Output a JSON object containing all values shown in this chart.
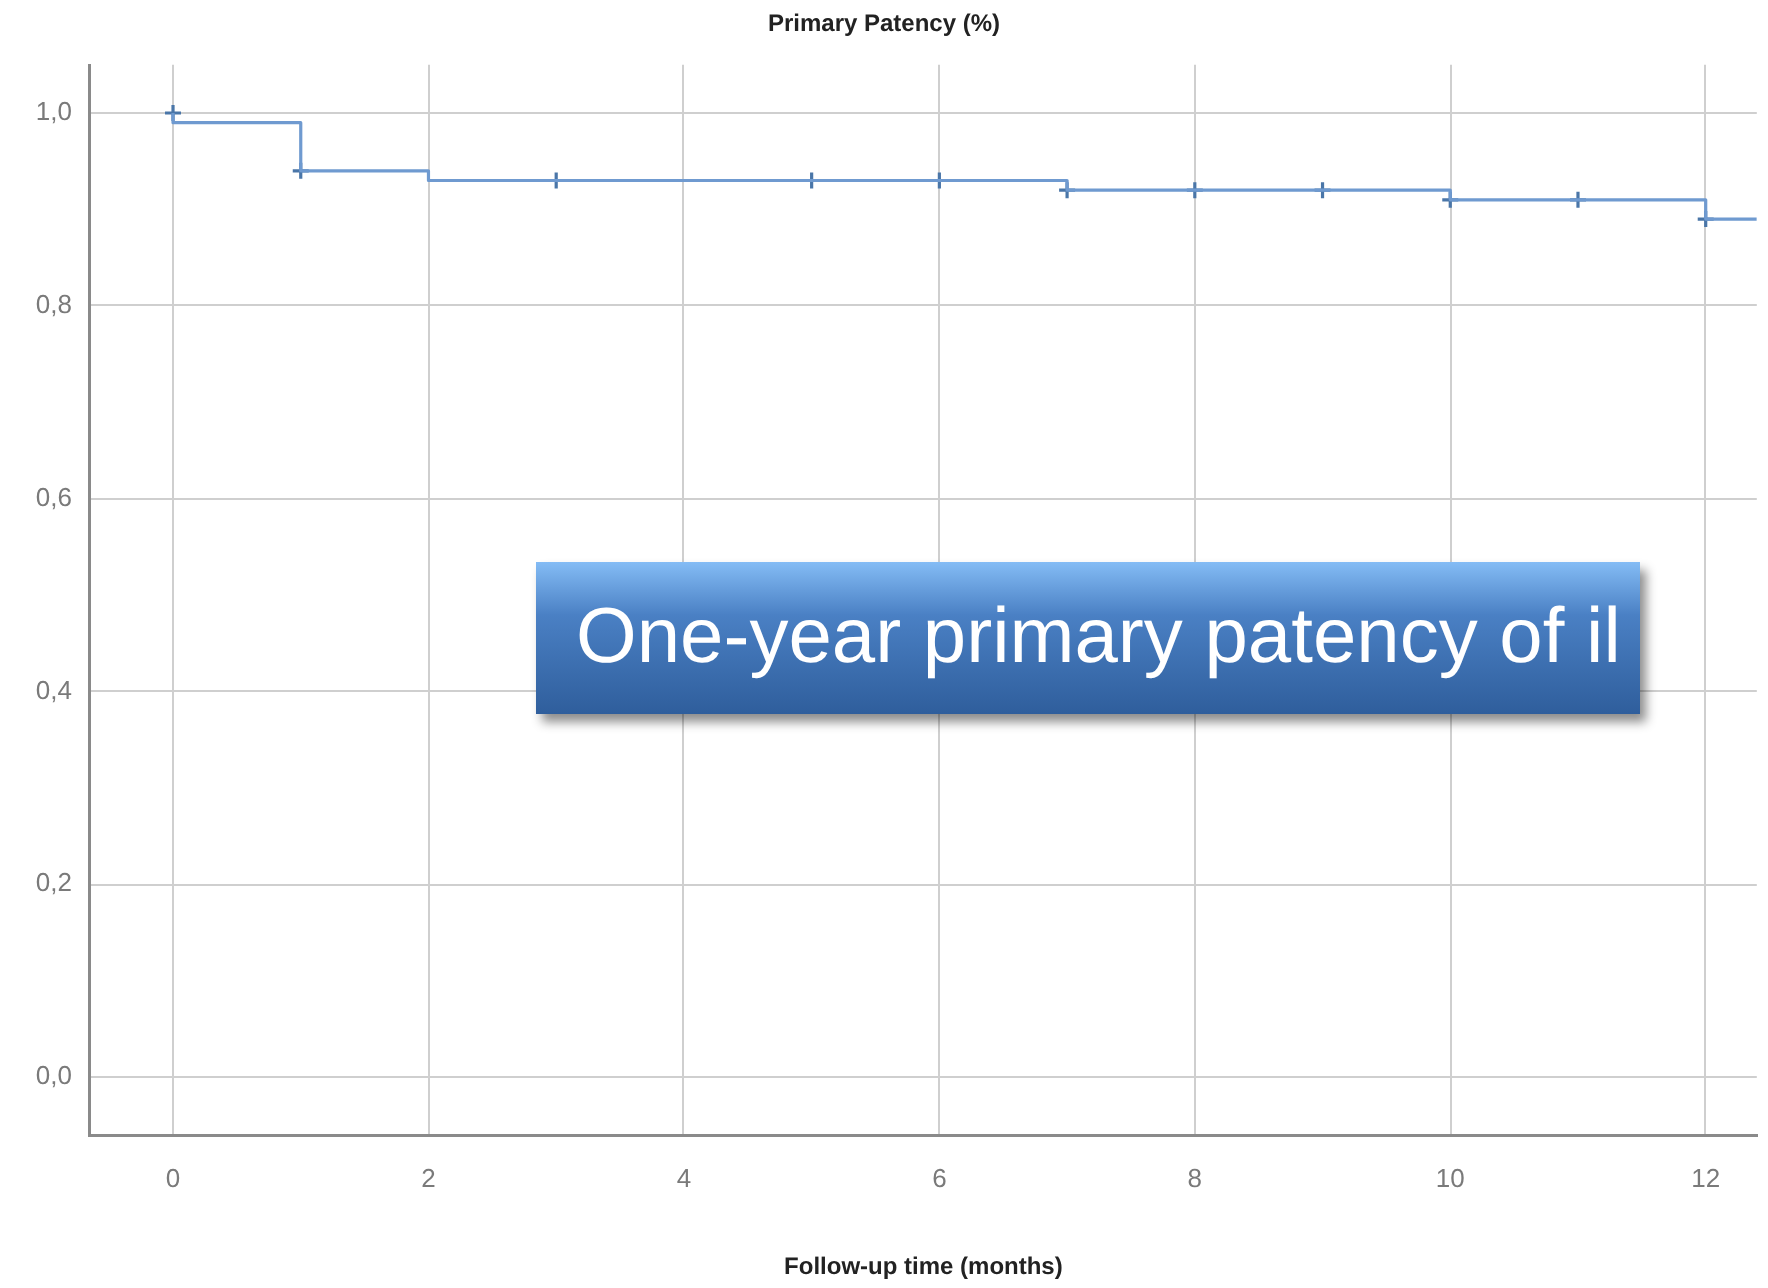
{
  "chart_data": {
    "type": "step",
    "title": "Primary Patency (%)",
    "xlabel": "Follow-up time (months)",
    "series": [
      {
        "color": "#6f9ad0",
        "marker": "none",
        "x": [
          0,
          0,
          1,
          2,
          7,
          10,
          12,
          12.4
        ],
        "values": [
          1.0,
          0.99,
          0.94,
          0.93,
          0.92,
          0.91,
          0.89,
          0.89
        ]
      },
      {
        "type": "scatter",
        "color": "#4a76a8",
        "marker": "cross",
        "x": [
          0,
          1,
          3,
          5,
          6,
          7,
          8,
          9,
          10,
          11,
          12
        ],
        "values": [
          1.0,
          0.94,
          0.93,
          0.93,
          0.93,
          0.92,
          0.92,
          0.92,
          0.91,
          0.91,
          0.89
        ]
      }
    ],
    "xlim": [
      -0.65,
      12.4
    ],
    "xticks": [
      0,
      2,
      4,
      6,
      8,
      10,
      12
    ],
    "ylim": [
      -0.06,
      1.05
    ],
    "yticks": [
      {
        "value": 0,
        "label": "0,0"
      },
      {
        "value": 0.2,
        "label": "0,2"
      },
      {
        "value": 0.4,
        "label": "0,4"
      },
      {
        "value": 0.6,
        "label": "0,6"
      },
      {
        "value": 0.8,
        "label": "0,8"
      },
      {
        "value": 1,
        "label": "1,0"
      }
    ],
    "grid": true,
    "annotations": [
      "One-year primary patency of il"
    ]
  }
}
